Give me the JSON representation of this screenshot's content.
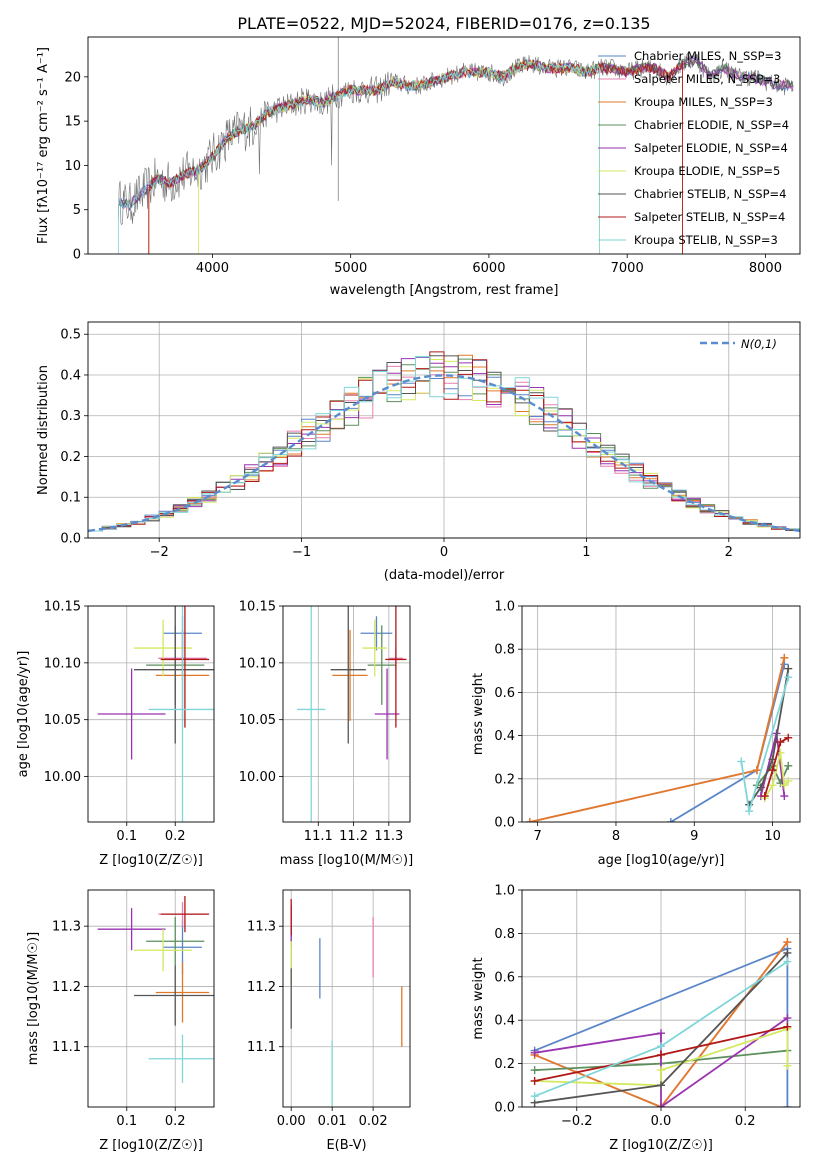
{
  "colors": {
    "Chabrier MILES": "#5a86c8",
    "Salpeter MILES": "#e87fb0",
    "Kroupa MILES": "#e07a2a",
    "Chabrier ELODIE": "#5c8f5c",
    "Salpeter ELODIE": "#9a33b0",
    "Kroupa ELODIE": "#d4e860",
    "Chabrier STELIB": "#555555",
    "Salpeter STELIB": "#b01818",
    "Kroupa STELIB": "#7fd6d9"
  },
  "chart_data": [
    {
      "type": "line",
      "title": "PLATE=0522, MJD=52024, FIBERID=0176, z=0.135",
      "xlabel": "wavelength [Angstrom, rest frame]",
      "ylabel": "Flux [fλ10⁻¹⁷ erg cm⁻² s⁻¹ A⁻¹]",
      "xlim": [
        3100,
        8250
      ],
      "ylim": [
        0,
        24.5
      ],
      "xticks": [
        "4000",
        "5000",
        "6000",
        "7000",
        "8000"
      ],
      "yticks": [
        "0",
        "5",
        "10",
        "15",
        "20"
      ],
      "legend": "upper right",
      "legend_entries": [
        {
          "label": "Chabrier MILES, N_SSP=3",
          "key": "Chabrier MILES"
        },
        {
          "label": "Salpeter MILES, N_SSP=3",
          "key": "Salpeter MILES"
        },
        {
          "label": "Kroupa MILES, N_SSP=3",
          "key": "Kroupa MILES"
        },
        {
          "label": "Chabrier ELODIE, N_SSP=4",
          "key": "Chabrier ELODIE"
        },
        {
          "label": "Salpeter ELODIE, N_SSP=4",
          "key": "Salpeter ELODIE"
        },
        {
          "label": "Kroupa ELODIE, N_SSP=5",
          "key": "Kroupa ELODIE"
        },
        {
          "label": "Chabrier STELIB, N_SSP=4",
          "key": "Chabrier STELIB"
        },
        {
          "label": "Salpeter STELIB, N_SSP=4",
          "key": "Salpeter STELIB"
        },
        {
          "label": "Kroupa STELIB, N_SSP=3",
          "key": "Kroupa STELIB"
        }
      ],
      "continuum": [
        [
          3320,
          6
        ],
        [
          3400,
          5.5
        ],
        [
          3500,
          7
        ],
        [
          3600,
          8.5
        ],
        [
          3700,
          8
        ],
        [
          3800,
          9
        ],
        [
          3900,
          9.5
        ],
        [
          4000,
          11
        ],
        [
          4100,
          13
        ],
        [
          4200,
          14
        ],
        [
          4300,
          14.5
        ],
        [
          4400,
          16
        ],
        [
          4500,
          16.5
        ],
        [
          4600,
          17
        ],
        [
          4700,
          17.5
        ],
        [
          4800,
          17
        ],
        [
          4900,
          18
        ],
        [
          5000,
          18.5
        ],
        [
          5100,
          18.5
        ],
        [
          5200,
          18.5
        ],
        [
          5300,
          19.5
        ],
        [
          5400,
          19
        ],
        [
          5500,
          19
        ],
        [
          5600,
          19.5
        ],
        [
          5700,
          20
        ],
        [
          5800,
          20.5
        ],
        [
          5900,
          20.5
        ],
        [
          6000,
          20.5
        ],
        [
          6100,
          20
        ],
        [
          6200,
          21
        ],
        [
          6300,
          21.5
        ],
        [
          6400,
          21
        ],
        [
          6500,
          21
        ],
        [
          6600,
          21
        ],
        [
          6700,
          20.5
        ],
        [
          6800,
          21
        ],
        [
          6900,
          21
        ],
        [
          7000,
          20.5
        ],
        [
          7100,
          21
        ],
        [
          7200,
          21
        ],
        [
          7300,
          20
        ],
        [
          7400,
          21.5
        ],
        [
          7500,
          22
        ],
        [
          7600,
          20
        ],
        [
          7700,
          21
        ],
        [
          7800,
          20
        ],
        [
          7900,
          20
        ],
        [
          8000,
          19.5
        ],
        [
          8100,
          19
        ],
        [
          8200,
          19
        ]
      ],
      "model_cutoffs": {
        "Kroupa MILES": [
          3540,
          7400
        ],
        "Salpeter STELIB": [
          3540,
          7400
        ],
        "Kroupa ELODIE": [
          3900,
          6800
        ],
        "Kroupa STELIB": [
          3320,
          6800
        ]
      }
    },
    {
      "type": "histogram",
      "xlabel": "(data-model)/error",
      "ylabel": "Normed distribution",
      "xlim": [
        -2.5,
        2.5
      ],
      "ylim": [
        0,
        0.53
      ],
      "xticks": [
        "−2",
        "−1",
        "0",
        "1",
        "2"
      ],
      "yticks": [
        "0.0",
        "0.1",
        "0.2",
        "0.3",
        "0.4",
        "0.5"
      ],
      "legend": "upper right",
      "reference_label": "N(0,1)",
      "bins_from": -2.5,
      "bin_width": 0.1
    },
    {
      "type": "scatter",
      "xlabel": "Z [log10(Z/Z☉)]",
      "ylabel": "age  [log10(age/yr)]",
      "xlim": [
        0.02,
        0.28
      ],
      "ylim": [
        9.96,
        10.15
      ],
      "xticks": [
        "0.1",
        "0.2"
      ],
      "yticks": [
        "10.00",
        "10.05",
        "10.10",
        "10.15"
      ],
      "points": [
        {
          "model": "Chabrier MILES",
          "x": 0.215,
          "y": 10.126,
          "xerr": 0.04,
          "yerr": 0.015
        },
        {
          "model": "Salpeter MILES",
          "x": 0.215,
          "y": 10.104,
          "xerr": 0.05,
          "yerr": 0.015
        },
        {
          "model": "Kroupa MILES",
          "x": 0.215,
          "y": 10.089,
          "xerr": 0.055,
          "yerr": 0.04
        },
        {
          "model": "Chabrier ELODIE",
          "x": 0.2,
          "y": 10.098,
          "xerr": 0.06,
          "yerr": 0.035
        },
        {
          "model": "Salpeter ELODIE",
          "x": 0.11,
          "y": 10.055,
          "xerr": 0.07,
          "yerr": 0.04
        },
        {
          "model": "Kroupa ELODIE",
          "x": 0.175,
          "y": 10.113,
          "xerr": 0.06,
          "yerr": 0.025
        },
        {
          "model": "Chabrier STELIB",
          "x": 0.2,
          "y": 10.094,
          "xerr": 0.085,
          "yerr": 0.065
        },
        {
          "model": "Salpeter STELIB",
          "x": 0.22,
          "y": 10.103,
          "xerr": 0.05,
          "yerr": 0.06
        },
        {
          "model": "Kroupa STELIB",
          "x": 0.215,
          "y": 10.059,
          "xerr": 0.07,
          "yerr": 0.1
        }
      ]
    },
    {
      "type": "scatter",
      "xlabel": "mass [log10(M/M☉)]",
      "ylabel": "",
      "xlim": [
        11.0,
        11.36
      ],
      "ylim": [
        9.96,
        10.15
      ],
      "xticks": [
        "11.1",
        "11.2",
        "11.3"
      ],
      "yticks": [
        "10.00",
        "10.05",
        "10.10",
        "10.15"
      ],
      "points": [
        {
          "model": "Chabrier MILES",
          "x": 11.265,
          "y": 10.126,
          "xerr": 0.045,
          "yerr": 0.015
        },
        {
          "model": "Salpeter MILES",
          "x": 11.32,
          "y": 10.104,
          "xerr": 0.02,
          "yerr": 0.01
        },
        {
          "model": "Kroupa MILES",
          "x": 11.19,
          "y": 10.089,
          "xerr": 0.05,
          "yerr": 0.04
        },
        {
          "model": "Chabrier ELODIE",
          "x": 11.28,
          "y": 10.098,
          "xerr": 0.04,
          "yerr": 0.035
        },
        {
          "model": "Salpeter ELODIE",
          "x": 11.295,
          "y": 10.055,
          "xerr": 0.035,
          "yerr": 0.04
        },
        {
          "model": "Kroupa ELODIE",
          "x": 11.26,
          "y": 10.113,
          "xerr": 0.035,
          "yerr": 0.025
        },
        {
          "model": "Chabrier STELIB",
          "x": 11.185,
          "y": 10.094,
          "xerr": 0.05,
          "yerr": 0.065
        },
        {
          "model": "Salpeter STELIB",
          "x": 11.32,
          "y": 10.103,
          "xerr": 0.03,
          "yerr": 0.06
        },
        {
          "model": "Kroupa STELIB",
          "x": 11.08,
          "y": 10.059,
          "xerr": 0.04,
          "yerr": 0.1
        }
      ]
    },
    {
      "type": "line",
      "xlabel": "age  [log10(age/yr)]",
      "ylabel": "mass weight",
      "xlim": [
        6.8,
        10.35
      ],
      "ylim": [
        0,
        1.0
      ],
      "xticks": [
        "7",
        "8",
        "9",
        "10"
      ],
      "yticks": [
        "0.0",
        "0.2",
        "0.4",
        "0.6",
        "0.8",
        "1.0"
      ],
      "series": [
        {
          "model": "Chabrier MILES",
          "x": [
            8.7,
            9.8,
            10.15
          ],
          "y": [
            0.0,
            0.24,
            0.73
          ]
        },
        {
          "model": "Salpeter MILES",
          "x": [
            6.9,
            9.8,
            10.15
          ],
          "y": [
            0.0,
            0.24,
            0.76
          ]
        },
        {
          "model": "Kroupa MILES",
          "x": [
            6.9,
            9.8,
            10.15
          ],
          "y": [
            0.0,
            0.24,
            0.76
          ]
        },
        {
          "model": "Chabrier ELODIE",
          "x": [
            9.8,
            10.0,
            10.1,
            10.2
          ],
          "y": [
            0.17,
            0.26,
            0.18,
            0.26
          ]
        },
        {
          "model": "Salpeter ELODIE",
          "x": [
            9.85,
            10.05,
            10.15
          ],
          "y": [
            0.12,
            0.41,
            0.12
          ]
        },
        {
          "model": "Kroupa ELODIE",
          "x": [
            9.9,
            10.0,
            10.1,
            10.15,
            10.2
          ],
          "y": [
            0.11,
            0.17,
            0.32,
            0.17,
            0.19
          ]
        },
        {
          "model": "Chabrier STELIB",
          "x": [
            9.7,
            9.85,
            10.0,
            10.2
          ],
          "y": [
            0.08,
            0.16,
            0.29,
            0.71
          ]
        },
        {
          "model": "Salpeter STELIB",
          "x": [
            9.9,
            10.0,
            10.1,
            10.2
          ],
          "y": [
            0.12,
            0.24,
            0.37,
            0.39
          ]
        },
        {
          "model": "Kroupa STELIB",
          "x": [
            9.6,
            9.7,
            10.2
          ],
          "y": [
            0.28,
            0.05,
            0.67
          ]
        }
      ]
    },
    {
      "type": "scatter",
      "xlabel": "Z [log10(Z/Z☉)]",
      "ylabel": "mass [log10(M/M☉)]",
      "xlim": [
        0.02,
        0.28
      ],
      "ylim": [
        11.0,
        11.36
      ],
      "xticks": [
        "0.1",
        "0.2"
      ],
      "yticks": [
        "11.1",
        "11.2",
        "11.3"
      ],
      "points": [
        {
          "model": "Chabrier MILES",
          "x": 0.215,
          "y": 11.265,
          "xerr": 0.04,
          "yerr": 0.045
        },
        {
          "model": "Salpeter MILES",
          "x": 0.215,
          "y": 11.32,
          "xerr": 0.05,
          "yerr": 0.02
        },
        {
          "model": "Kroupa MILES",
          "x": 0.215,
          "y": 11.19,
          "xerr": 0.055,
          "yerr": 0.05
        },
        {
          "model": "Chabrier ELODIE",
          "x": 0.2,
          "y": 11.275,
          "xerr": 0.06,
          "yerr": 0.04
        },
        {
          "model": "Salpeter ELODIE",
          "x": 0.11,
          "y": 11.295,
          "xerr": 0.07,
          "yerr": 0.035
        },
        {
          "model": "Kroupa ELODIE",
          "x": 0.175,
          "y": 11.26,
          "xerr": 0.06,
          "yerr": 0.035
        },
        {
          "model": "Chabrier STELIB",
          "x": 0.2,
          "y": 11.185,
          "xerr": 0.085,
          "yerr": 0.05
        },
        {
          "model": "Salpeter STELIB",
          "x": 0.22,
          "y": 11.32,
          "xerr": 0.05,
          "yerr": 0.03
        },
        {
          "model": "Kroupa STELIB",
          "x": 0.215,
          "y": 11.08,
          "xerr": 0.07,
          "yerr": 0.04
        }
      ]
    },
    {
      "type": "scatter",
      "xlabel": "E(B-V)",
      "ylabel": "",
      "xlim": [
        -0.002,
        0.029
      ],
      "ylim": [
        11.0,
        11.36
      ],
      "xticks": [
        "0.00",
        "0.01",
        "0.02"
      ],
      "yticks": [
        "11.1",
        "11.2",
        "11.3"
      ],
      "points": [
        {
          "model": "Chabrier MILES",
          "x": 0.007,
          "y": 11.23,
          "xerr": 0,
          "yerr": 0.05
        },
        {
          "model": "Salpeter MILES",
          "x": 0.02,
          "y": 11.265,
          "xerr": 0,
          "yerr": 0.05
        },
        {
          "model": "Kroupa MILES",
          "x": 0.027,
          "y": 11.15,
          "xerr": 0,
          "yerr": 0.05
        },
        {
          "model": "Chabrier ELODIE",
          "x": 0.0,
          "y": 11.26,
          "xerr": 0,
          "yerr": 0.04
        },
        {
          "model": "Salpeter ELODIE",
          "x": 0.0,
          "y": 11.3,
          "xerr": 0,
          "yerr": 0.035
        },
        {
          "model": "Kroupa ELODIE",
          "x": 0.0,
          "y": 11.24,
          "xerr": 0,
          "yerr": 0.035
        },
        {
          "model": "Chabrier STELIB",
          "x": 0.0,
          "y": 11.18,
          "xerr": 0,
          "yerr": 0.05
        },
        {
          "model": "Salpeter STELIB",
          "x": 0.0,
          "y": 11.315,
          "xerr": 0,
          "yerr": 0.03
        },
        {
          "model": "Kroupa STELIB",
          "x": 0.01,
          "y": 11.05,
          "xerr": 0,
          "yerr": 0.06
        }
      ]
    },
    {
      "type": "line",
      "xlabel": "Z [log10(Z/Z☉)]",
      "ylabel": "mass weight",
      "xlim": [
        -0.33,
        0.33
      ],
      "ylim": [
        0,
        1.0
      ],
      "xticks": [
        "−0.2",
        "0.0",
        "0.2"
      ],
      "yticks": [
        "0.0",
        "0.2",
        "0.4",
        "0.6",
        "0.8",
        "1.0"
      ],
      "series": [
        {
          "model": "Chabrier MILES",
          "x": [
            -0.3,
            0.3,
            0.3
          ],
          "y": [
            0.26,
            0.73,
            0.0
          ]
        },
        {
          "model": "Salpeter MILES",
          "x": [
            -0.3,
            0.0,
            0.3
          ],
          "y": [
            0.24,
            0.0,
            0.76
          ]
        },
        {
          "model": "Kroupa MILES",
          "x": [
            -0.3,
            0.0,
            0.3
          ],
          "y": [
            0.24,
            0.0,
            0.76
          ]
        },
        {
          "model": "Chabrier ELODIE",
          "x": [
            -0.3,
            0.0,
            0.3
          ],
          "y": [
            0.17,
            0.2,
            0.26
          ]
        },
        {
          "model": "Salpeter ELODIE",
          "x": [
            -0.3,
            0.0,
            0.0,
            0.3
          ],
          "y": [
            0.25,
            0.34,
            0.0,
            0.41
          ]
        },
        {
          "model": "Kroupa ELODIE",
          "x": [
            -0.3,
            0.0,
            0.0,
            0.3,
            0.3
          ],
          "y": [
            0.12,
            0.1,
            0.17,
            0.36,
            0.19
          ]
        },
        {
          "model": "Chabrier STELIB",
          "x": [
            -0.3,
            0.0,
            0.3
          ],
          "y": [
            0.02,
            0.1,
            0.71
          ]
        },
        {
          "model": "Salpeter STELIB",
          "x": [
            -0.3,
            0.0,
            0.3
          ],
          "y": [
            0.12,
            0.24,
            0.37
          ]
        },
        {
          "model": "Kroupa STELIB",
          "x": [
            -0.3,
            0.0,
            0.3
          ],
          "y": [
            0.05,
            0.28,
            0.67
          ]
        }
      ]
    }
  ]
}
